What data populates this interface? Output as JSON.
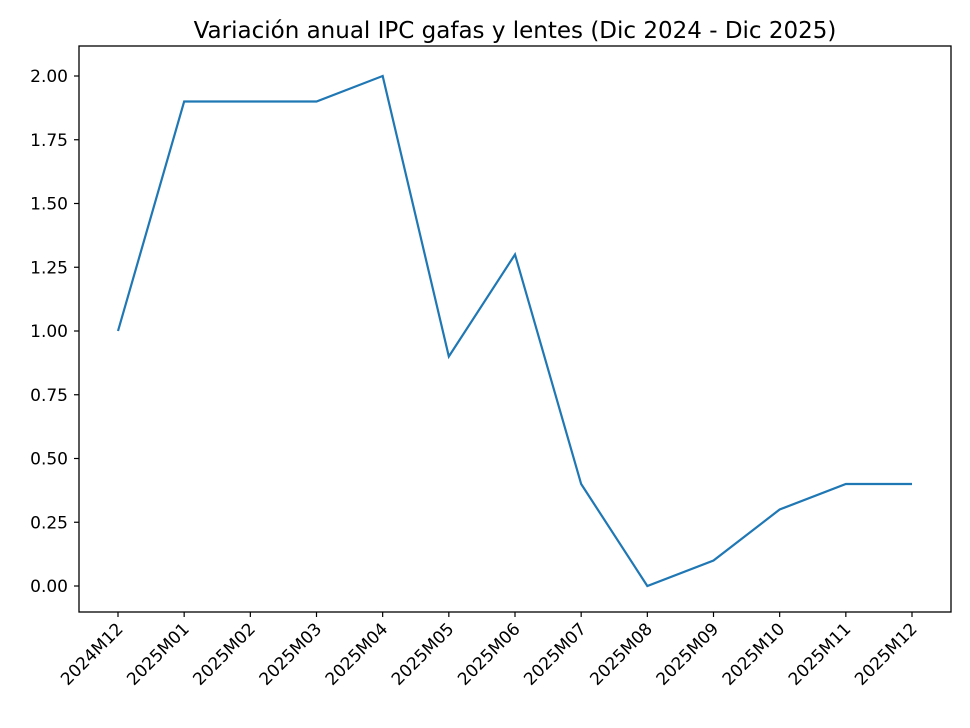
{
  "chart_data": {
    "type": "line",
    "title": "Variación anual IPC gafas y lentes (Dic 2024 - Dic 2025)",
    "xlabel": "",
    "ylabel": "",
    "categories": [
      "2024M12",
      "2025M01",
      "2025M02",
      "2025M03",
      "2025M04",
      "2025M05",
      "2025M06",
      "2025M07",
      "2025M08",
      "2025M09",
      "2025M10",
      "2025M11",
      "2025M12"
    ],
    "series": [
      {
        "name": "IPC gafas y lentes",
        "values": [
          1.0,
          1.9,
          1.9,
          1.9,
          2.0,
          0.9,
          1.3,
          0.4,
          0.0,
          0.1,
          0.3,
          0.4,
          0.4
        ],
        "color": "#1f77b4"
      }
    ],
    "yticks": [
      "0.00",
      "0.25",
      "0.50",
      "0.75",
      "1.00",
      "1.25",
      "1.50",
      "1.75",
      "2.00"
    ],
    "ylim": [
      -0.1,
      2.1
    ],
    "grid": false,
    "legend": "none"
  }
}
